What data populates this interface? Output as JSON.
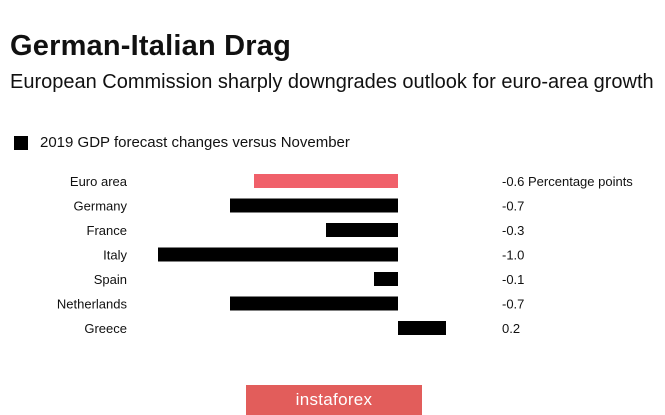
{
  "title": "German-Italian Drag",
  "subtitle": "European Commission sharply downgrades outlook for euro-area growth",
  "legend_label": "2019 GDP forecast changes versus November",
  "watermark": "instaforex",
  "colors": {
    "highlight": "#f0606a",
    "bar": "#000000",
    "watermark_bg": "#e25d5b"
  },
  "chart_data": {
    "type": "bar",
    "orientation": "horizontal",
    "title": "German-Italian Drag",
    "subtitle": "European Commission sharply downgrades outlook for euro-area growth",
    "categories": [
      "Euro area",
      "Germany",
      "France",
      "Italy",
      "Spain",
      "Netherlands",
      "Greece"
    ],
    "series": [
      {
        "name": "2019 GDP forecast changes versus November",
        "values": [
          -0.6,
          -0.7,
          -0.3,
          -1.0,
          -0.1,
          -0.7,
          0.2
        ]
      }
    ],
    "value_labels": [
      "-0.6 Percentage points",
      "-0.7",
      "-0.3",
      "-1.0",
      "-0.1",
      "-0.7",
      "0.2"
    ],
    "highlight_category": "Euro area",
    "xlim": [
      -1.0,
      0.2
    ],
    "grid": false
  }
}
